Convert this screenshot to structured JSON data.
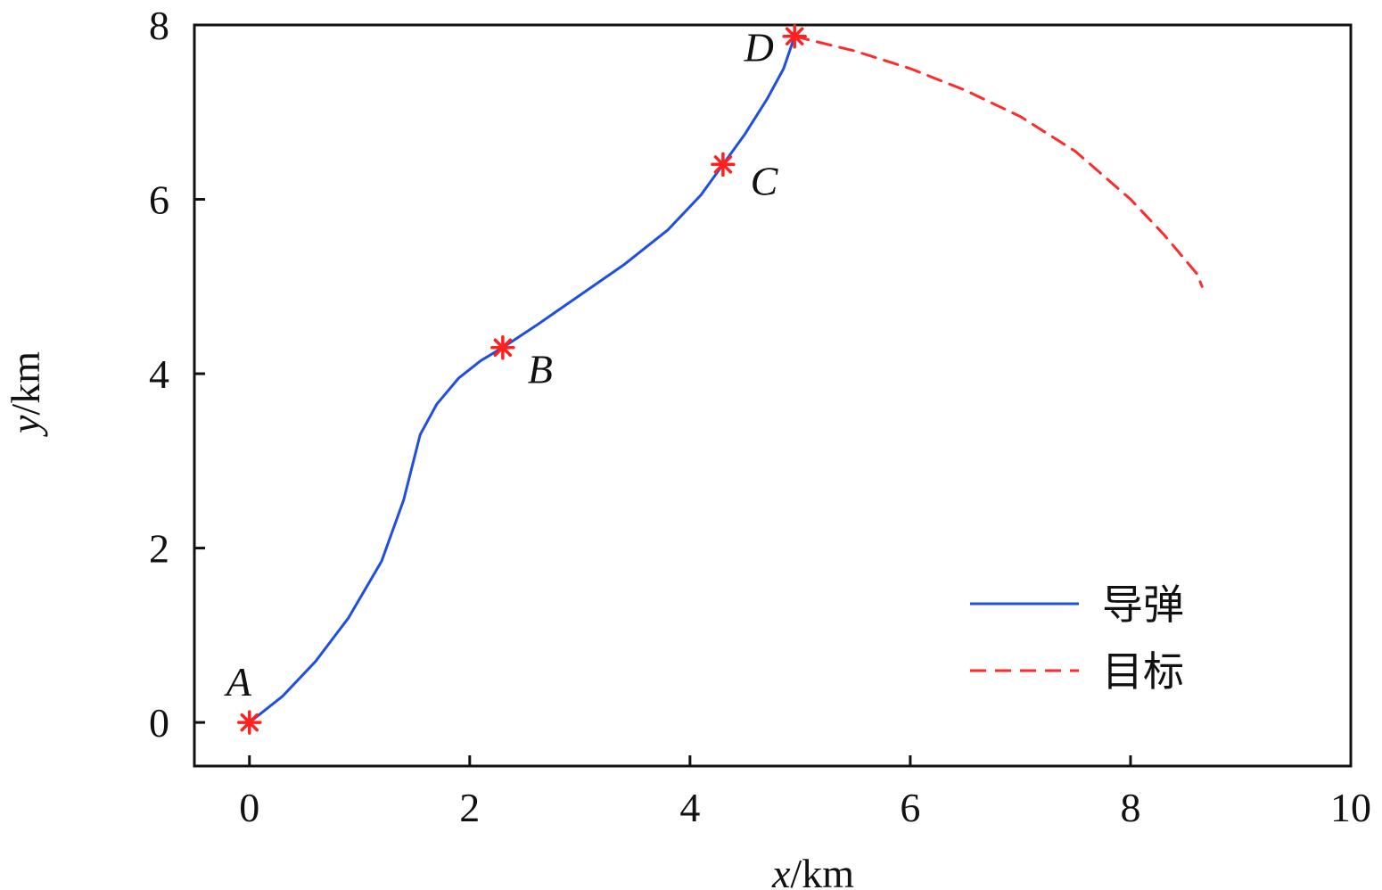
{
  "chart_data": {
    "type": "line",
    "xlabel_var": "x",
    "xlabel_unit": "/km",
    "ylabel_var": "y",
    "ylabel_unit": "/km",
    "xlim": [
      -0.5,
      10
    ],
    "ylim": [
      -0.5,
      8
    ],
    "xticks": [
      "0",
      "2",
      "4",
      "6",
      "8",
      "10"
    ],
    "yticks": [
      "0",
      "2",
      "4",
      "6",
      "8"
    ],
    "grid": false,
    "legend_position": "bottom-right",
    "series": [
      {
        "name": "导弹",
        "style": "solid",
        "color": "#1f4fe0",
        "x": [
          0.0,
          0.3,
          0.6,
          0.9,
          1.2,
          1.4,
          1.55,
          1.7,
          1.9,
          2.1,
          2.3,
          2.6,
          3.0,
          3.4,
          3.8,
          4.1,
          4.3,
          4.5,
          4.7,
          4.85,
          4.95
        ],
        "y": [
          0.0,
          0.3,
          0.7,
          1.2,
          1.85,
          2.55,
          3.3,
          3.65,
          3.95,
          4.15,
          4.3,
          4.55,
          4.9,
          5.25,
          5.65,
          6.05,
          6.4,
          6.75,
          7.15,
          7.5,
          7.87
        ]
      },
      {
        "name": "目标",
        "style": "dashed",
        "color": "#ff2a2a",
        "x": [
          4.95,
          5.5,
          6.0,
          6.5,
          7.0,
          7.5,
          8.0,
          8.3,
          8.6,
          8.65
        ],
        "y": [
          7.87,
          7.7,
          7.5,
          7.25,
          6.95,
          6.55,
          6.0,
          5.6,
          5.15,
          5.0
        ]
      }
    ],
    "points": [
      {
        "label": "A",
        "x": 0.0,
        "y": 0.0
      },
      {
        "label": "B",
        "x": 2.3,
        "y": 4.3
      },
      {
        "label": "C",
        "x": 4.3,
        "y": 6.4
      },
      {
        "label": "D",
        "x": 4.95,
        "y": 7.87
      }
    ],
    "marker_color": "#ff2020"
  }
}
